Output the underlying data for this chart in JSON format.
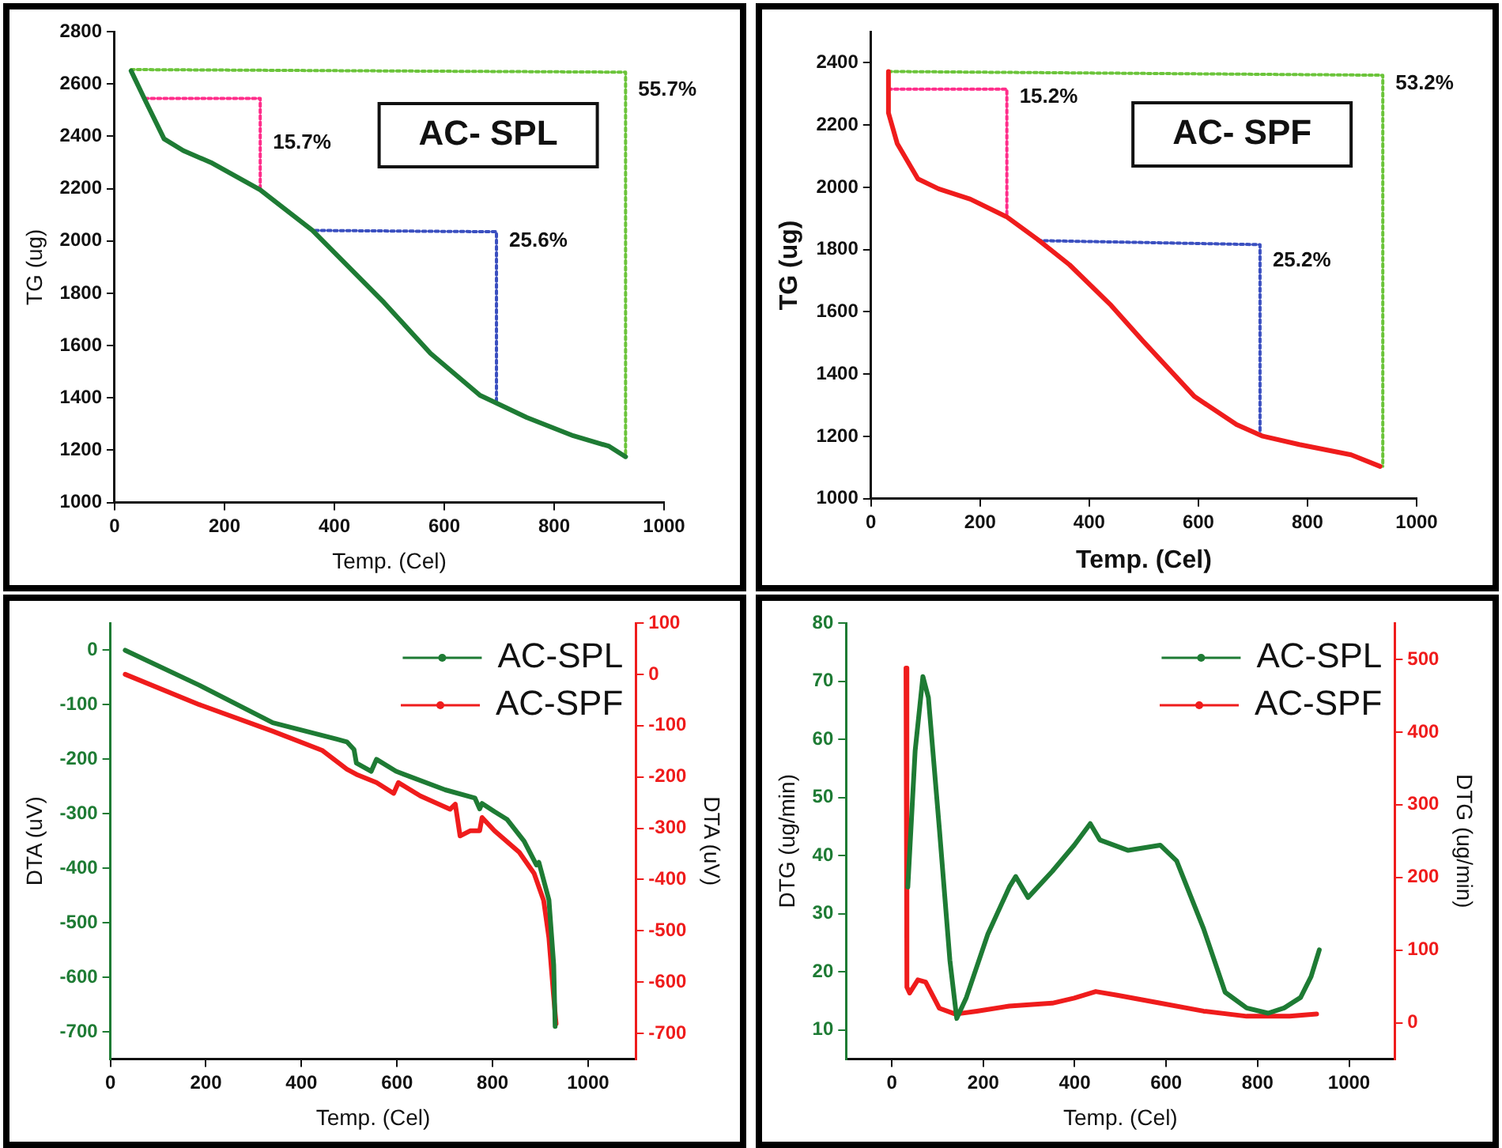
{
  "chart_data": [
    {
      "type": "line",
      "xlabel": "Temp. (Cel)",
      "ylabel": "TG (ug)",
      "xlim": [
        0,
        1000
      ],
      "xticks": [
        0,
        200,
        400,
        600,
        800,
        1000
      ],
      "ylim": [
        1000,
        2800
      ],
      "yticks": [
        1000,
        1200,
        1400,
        1600,
        1800,
        2000,
        2200,
        2400,
        2600,
        2800
      ],
      "series": [
        {
          "color": "#1e7b34",
          "x": [
            30,
            55,
            90,
            125,
            175,
            265,
            360,
            490,
            575,
            665,
            700,
            750,
            835,
            900,
            930
          ],
          "values": [
            2650,
            2540,
            2390,
            2345,
            2300,
            2195,
            2040,
            1765,
            1570,
            1410,
            1375,
            1325,
            1255,
            1215,
            1175
          ]
        },
        {
          "color": "#ff2d8a",
          "line_style": "dotted",
          "x": [
            55,
            265,
            265
          ],
          "values": [
            2545,
            2545,
            2200
          ]
        },
        {
          "color": "#3a4fc0",
          "line_style": "dotted",
          "x": [
            365,
            695,
            695
          ],
          "values": [
            2040,
            2035,
            1380
          ]
        },
        {
          "color": "#6bc43a",
          "line_style": "dotted",
          "x": [
            30,
            930,
            930
          ],
          "values": [
            2655,
            2645,
            1175
          ]
        }
      ],
      "annotations": [
        {
          "text": "15.7%",
          "x": 265,
          "y": 2373
        },
        {
          "text": "25.6%",
          "x": 695,
          "y": 2000
        },
        {
          "text": "55.7%",
          "x": 930,
          "y": 2578
        },
        "AC- SPL"
      ]
    },
    {
      "type": "line",
      "xlabel": "Temp. (Cel)",
      "ylabel": "TG (ug)",
      "xlim": [
        0,
        1000
      ],
      "xticks": [
        0,
        200,
        400,
        600,
        800,
        1000
      ],
      "ylim": [
        1000,
        2500
      ],
      "yticks": [
        1000,
        1200,
        1400,
        1600,
        1800,
        2000,
        2200,
        2400
      ],
      "series": [
        {
          "color": "#ef1c1c",
          "x": [
            32,
            32,
            48,
            86,
            124,
            182,
            249,
            306,
            364,
            440,
            498,
            593,
            670,
            718,
            785,
            880,
            933
          ],
          "values": [
            2372,
            2239,
            2141,
            2027,
            1995,
            1962,
            1905,
            1832,
            1751,
            1621,
            1507,
            1328,
            1238,
            1201,
            1174,
            1141,
            1104
          ]
        },
        {
          "color": "#ff2d8a",
          "line_style": "dotted",
          "x": [
            32,
            249,
            249
          ],
          "values": [
            2315,
            2315,
            1905
          ]
        },
        {
          "color": "#3a4fc0",
          "line_style": "dotted",
          "x": [
            306,
            713,
            713
          ],
          "values": [
            1829,
            1816,
            1205
          ]
        },
        {
          "color": "#6bc43a",
          "line_style": "dotted",
          "x": [
            32,
            938,
            938
          ],
          "values": [
            2372,
            2360,
            1104
          ]
        }
      ],
      "annotations": [
        {
          "text": "15.2%",
          "x": 249,
          "y": 2290
        },
        {
          "text": "25.2%",
          "x": 713,
          "y": 1763
        },
        {
          "text": "53.2%",
          "x": 938,
          "y": 2332
        },
        "AC- SPF"
      ]
    },
    {
      "type": "line",
      "xlabel": "Temp. (Cel)",
      "ylabel": "DTA (uV)",
      "y2label": "DTA (uV)",
      "legend": "top right",
      "xlim": [
        0,
        1100
      ],
      "xticks": [
        0,
        200,
        400,
        600,
        800,
        1000
      ],
      "ylim": [
        -750,
        50
      ],
      "yticks": [
        -700,
        -600,
        -500,
        -400,
        -300,
        -200,
        -100,
        0
      ],
      "y2lim": [
        -750,
        100
      ],
      "y2ticks": [
        -700,
        -600,
        -500,
        -400,
        -300,
        -200,
        -100,
        0,
        100
      ],
      "series": [
        {
          "name": "AC-SPL",
          "color": "#1e7b34",
          "x": [
            31,
            186,
            340,
            474,
            495,
            510,
            515,
            546,
            557,
            598,
            701,
            763,
            773,
            778,
            804,
            830,
            866,
            892,
            897,
            918,
            928,
            931
          ],
          "values": [
            0,
            -64,
            -133,
            -163,
            -168,
            -182,
            -207,
            -222,
            -200,
            -222,
            -256,
            -271,
            -291,
            -281,
            -296,
            -310,
            -350,
            -394,
            -389,
            -458,
            -577,
            -690
          ]
        },
        {
          "name": "AC-SPF",
          "color": "#ef1c1c",
          "axis": "y2",
          "x": [
            31,
            186,
            340,
            443,
            495,
            515,
            557,
            593,
            603,
            649,
            711,
            722,
            732,
            753,
            773,
            778,
            804,
            856,
            887,
            907,
            918,
            928,
            933
          ],
          "values": [
            0,
            -59,
            -111,
            -148,
            -185,
            -195,
            -211,
            -232,
            -211,
            -237,
            -263,
            -253,
            -315,
            -305,
            -305,
            -279,
            -305,
            -347,
            -388,
            -441,
            -514,
            -629,
            -681
          ]
        }
      ]
    },
    {
      "type": "line",
      "xlabel": "Temp. (Cel)",
      "ylabel": "DTG (ug/min)",
      "y2label": "DTG (ug/min)",
      "legend": "top right",
      "xlim": [
        -100,
        1100
      ],
      "xticks": [
        0,
        200,
        400,
        600,
        800,
        1000
      ],
      "ylim": [
        5,
        80
      ],
      "yticks": [
        10,
        20,
        30,
        40,
        50,
        60,
        70,
        80
      ],
      "y2lim": [
        -50,
        550
      ],
      "y2ticks": [
        0,
        100,
        200,
        300,
        400,
        500
      ],
      "series": [
        {
          "name": "AC-SPL",
          "color": "#1e7b34",
          "x": [
            35,
            51,
            68,
            80,
            104,
            127,
            142,
            163,
            210,
            257,
            271,
            298,
            351,
            399,
            434,
            455,
            517,
            587,
            623,
            682,
            729,
            776,
            823,
            858,
            894,
            917,
            935
          ],
          "values": [
            34.6,
            58,
            70.8,
            67.2,
            44.6,
            22,
            12,
            15.6,
            26.5,
            34.6,
            36.4,
            32.8,
            37.3,
            41.8,
            45.5,
            42.7,
            40.9,
            41.8,
            39.1,
            27.4,
            16.5,
            13.8,
            12.9,
            13.8,
            15.6,
            19.2,
            23.8
          ]
        },
        {
          "name": "AC-SPF",
          "color": "#ef1c1c",
          "axis": "y2",
          "x": [
            31,
            33,
            39,
            57,
            74,
            104,
            139,
            186,
            257,
            351,
            399,
            446,
            493,
            587,
            682,
            776,
            870,
            929
          ],
          "values": [
            488,
            49,
            41,
            59,
            56,
            20,
            12,
            16,
            23,
            27,
            34,
            43,
            38,
            27,
            16,
            9,
            9,
            12
          ]
        }
      ]
    }
  ]
}
